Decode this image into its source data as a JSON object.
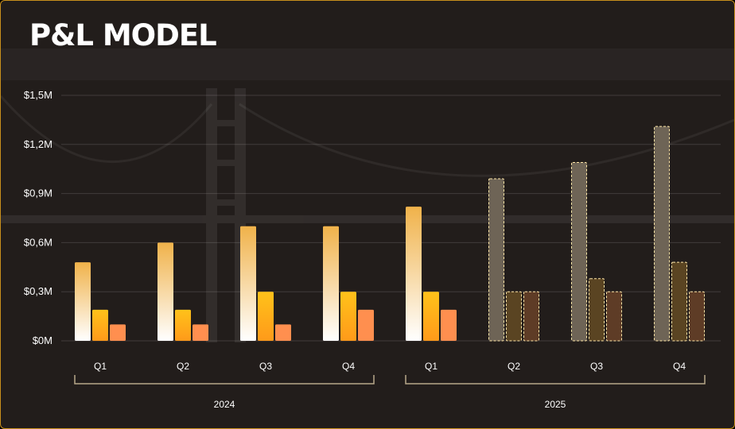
{
  "title": "P&L MODEL",
  "colors": {
    "frame_border": "#c8901c",
    "background": "#221d1b",
    "series1_top": "#f0b24a",
    "series1_bottom": "#ffffff",
    "series2_top": "#ffc21a",
    "series2_bottom": "#ff9a1a",
    "series3": "#ff8f4f",
    "forecast_outline": "#ffe6a8",
    "forecast1": "#6e6456",
    "forecast2": "#5a4422",
    "forecast3": "#5e3c26"
  },
  "chart_data": {
    "type": "bar",
    "ylim": [
      0,
      1.5
    ],
    "yticks": [
      "$0M",
      "$0,3M",
      "$0,6M",
      "$0,9M",
      "$1,2M",
      "$1,5M"
    ],
    "ytick_values": [
      0,
      0.3,
      0.6,
      0.9,
      1.2,
      1.5
    ],
    "grid": true,
    "categories": [
      "Q1",
      "Q2",
      "Q3",
      "Q4",
      "Q1",
      "Q2",
      "Q3",
      "Q4"
    ],
    "groups": [
      {
        "label": "2024",
        "categories": [
          0,
          1,
          2,
          3
        ]
      },
      {
        "label": "2025",
        "categories": [
          4,
          5,
          6,
          7
        ]
      }
    ],
    "forecast_categories": [
      5,
      6,
      7
    ],
    "series": [
      {
        "values": [
          0.48,
          0.6,
          0.7,
          0.7,
          0.82,
          0.99,
          1.09,
          1.31
        ]
      },
      {
        "values": [
          0.19,
          0.19,
          0.3,
          0.3,
          0.3,
          0.3,
          0.38,
          0.48
        ]
      },
      {
        "values": [
          0.1,
          0.1,
          0.1,
          0.19,
          0.19,
          0.3,
          0.3,
          0.3
        ]
      }
    ]
  }
}
